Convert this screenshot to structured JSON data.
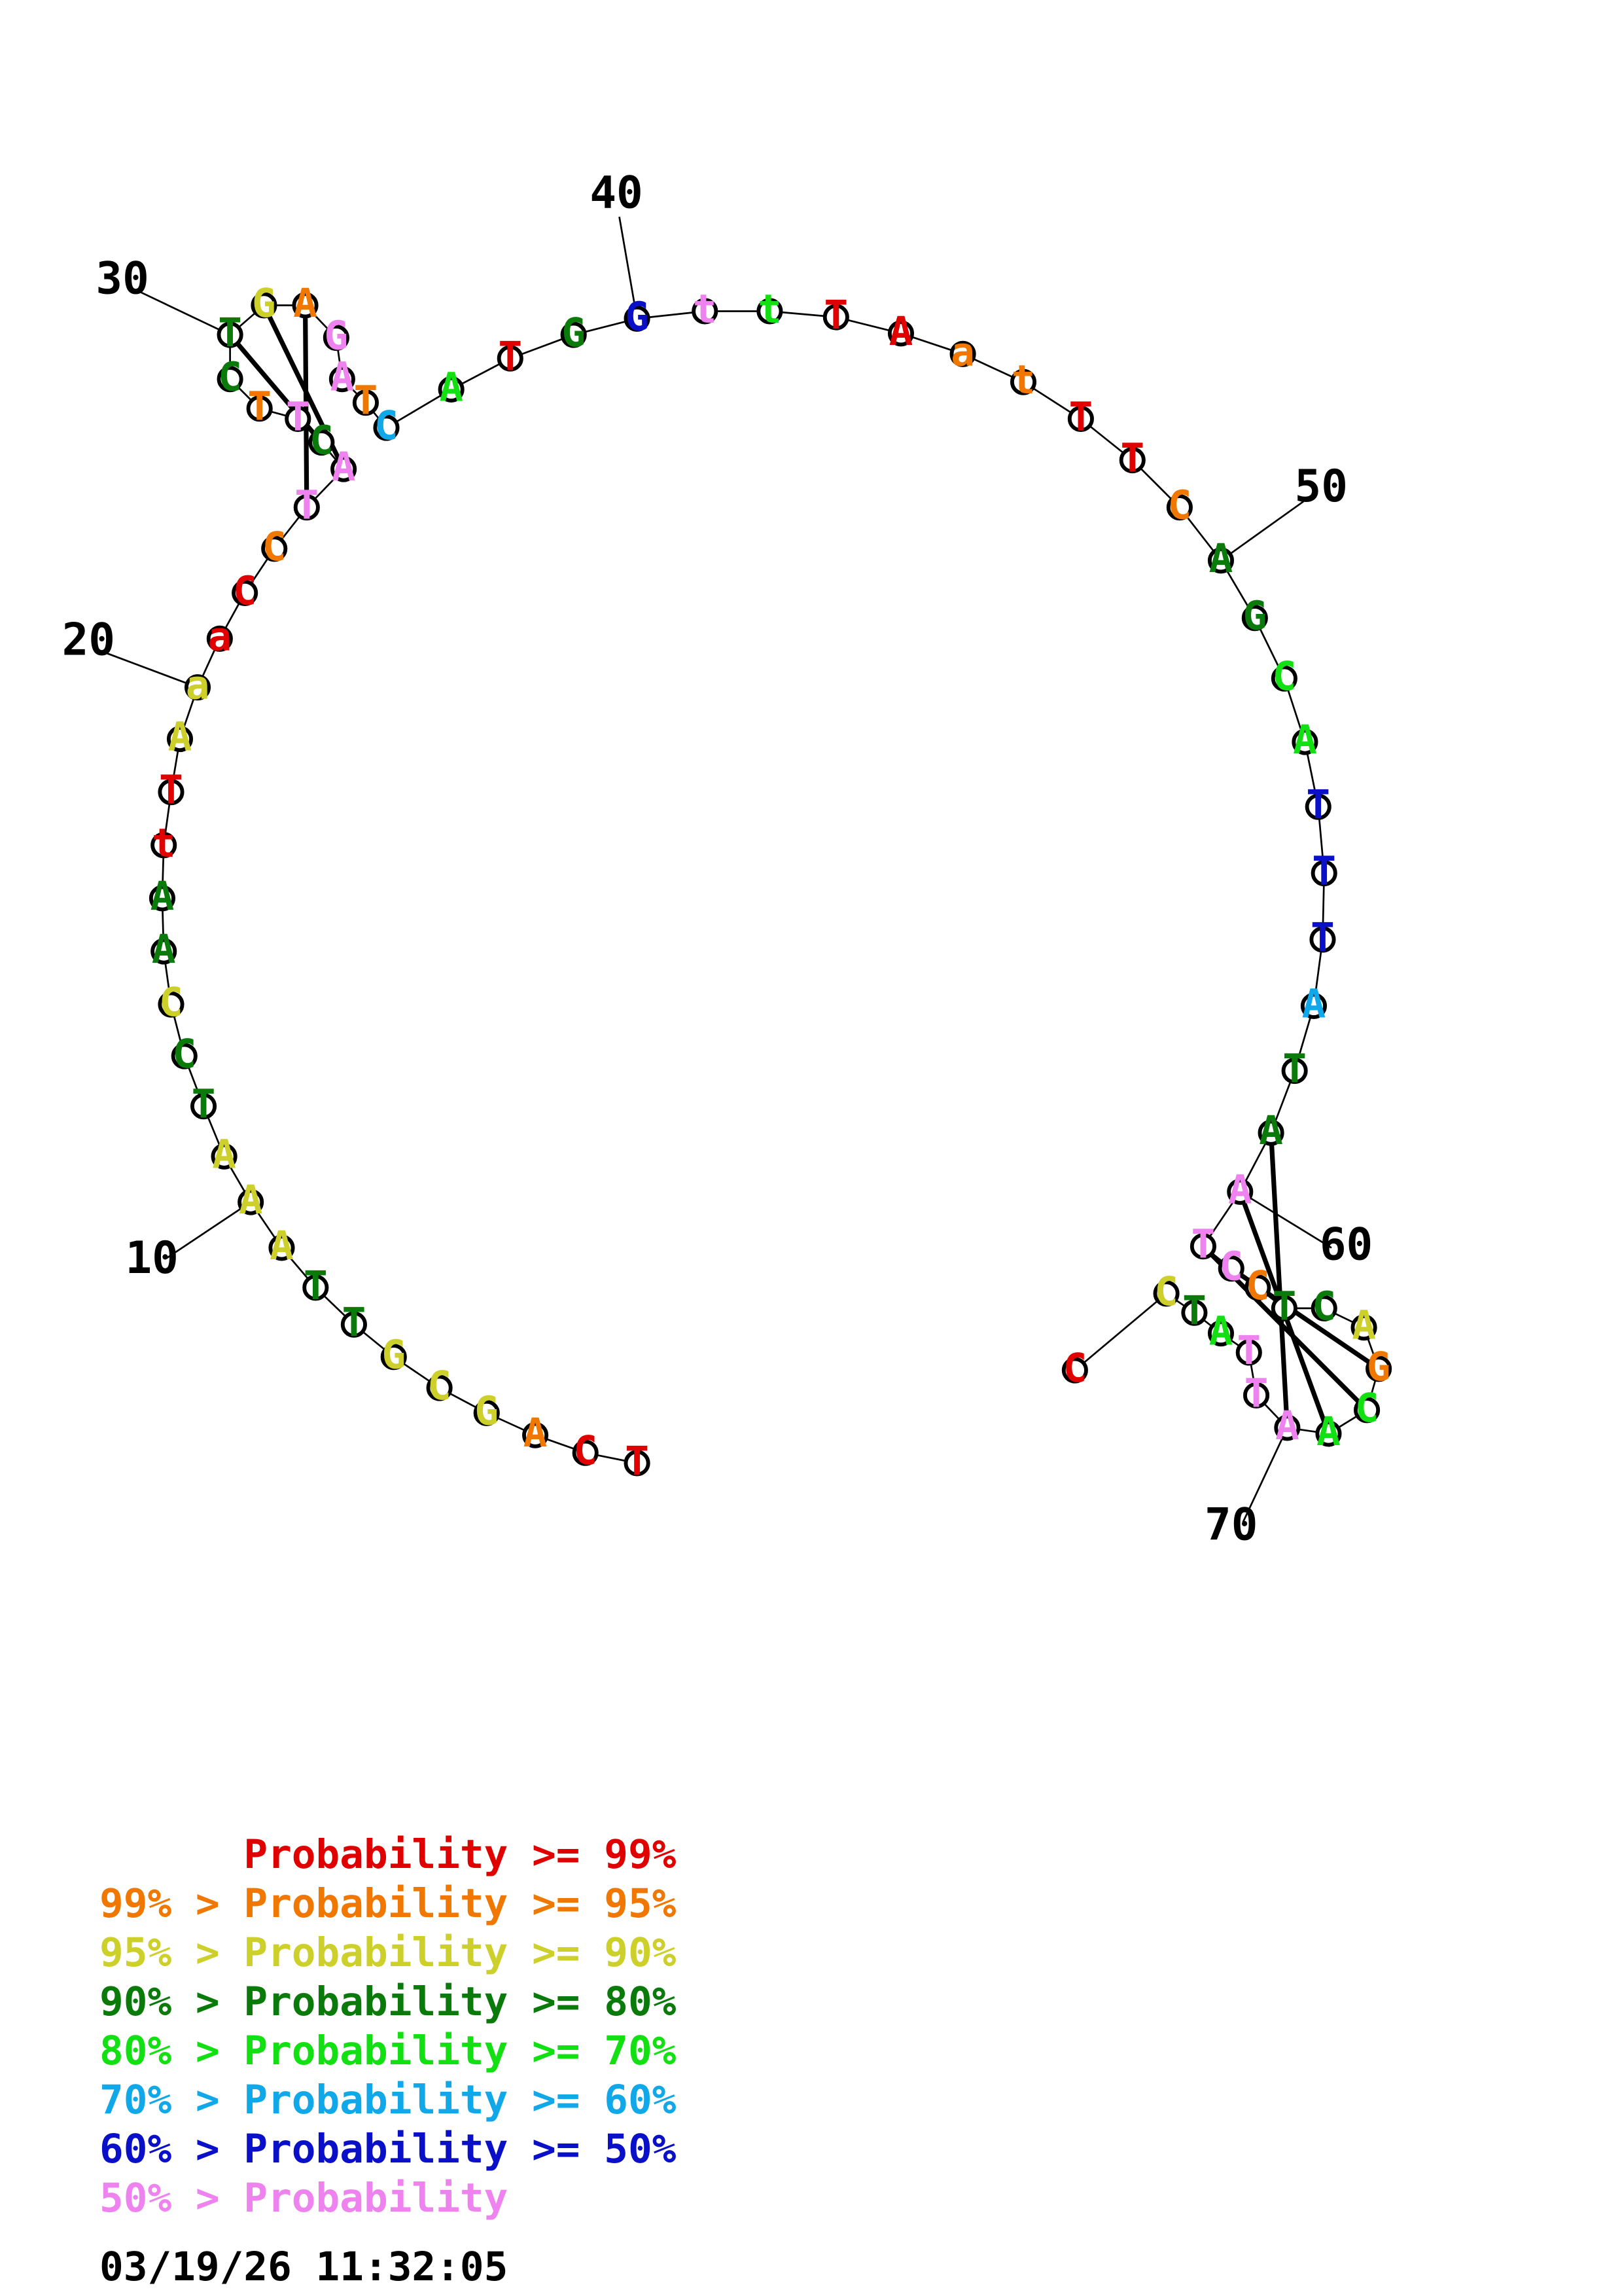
{
  "sequence": [
    "T",
    "C",
    "A",
    "G",
    "C",
    "G",
    "T",
    "T",
    "A",
    "A",
    "A",
    "T",
    "C",
    "C",
    "A",
    "A",
    "t",
    "T",
    "A",
    "a",
    "a",
    "C",
    "C",
    "T",
    "A",
    "C",
    "T",
    "T",
    "C",
    "T",
    "G",
    "A",
    "G",
    "A",
    "T",
    "C",
    "A",
    "T",
    "G",
    "G",
    "t",
    "t",
    "T",
    "A",
    "a",
    "t",
    "T",
    "T",
    "C",
    "A",
    "G",
    "C",
    "A",
    "T",
    "T",
    "T",
    "A",
    "T",
    "A",
    "A",
    "T",
    "C",
    "C",
    "T",
    "C",
    "A",
    "G",
    "C",
    "A",
    "A",
    "T",
    "T",
    "A",
    "T",
    "C",
    "C"
  ],
  "probability_class": [
    "red",
    "red",
    "orange",
    "yellow",
    "yellow",
    "yellow",
    "dkgreen",
    "dkgreen",
    "yellow",
    "yellow",
    "yellow",
    "dkgreen",
    "dkgreen",
    "yellow",
    "dkgreen",
    "dkgreen",
    "red",
    "red",
    "yellow",
    "yellow",
    "red",
    "red",
    "orange",
    "pink",
    "pink",
    "dkgreen",
    "pink",
    "orange",
    "dkgreen",
    "dkgreen",
    "yellow",
    "orange",
    "pink",
    "pink",
    "orange",
    "cyan",
    "green",
    "red",
    "dkgreen",
    "blue",
    "pink",
    "green",
    "red",
    "red",
    "orange",
    "orange",
    "red",
    "red",
    "orange",
    "dkgreen",
    "dkgreen",
    "green",
    "green",
    "blue",
    "blue",
    "blue",
    "cyan",
    "dkgreen",
    "dkgreen",
    "pink",
    "pink",
    "pink",
    "orange",
    "dkgreen",
    "dkgreen",
    "yellow",
    "orange",
    "green",
    "green",
    "pink",
    "pink",
    "pink",
    "green",
    "dkgreen",
    "yellow",
    "red"
  ],
  "base_pairs": [
    [
      24,
      32
    ],
    [
      25,
      31
    ],
    [
      26,
      30
    ],
    [
      59,
      70
    ],
    [
      60,
      69
    ],
    [
      61,
      68
    ],
    [
      62,
      67
    ]
  ],
  "position_labels": [
    {
      "nt": 10,
      "text": "10"
    },
    {
      "nt": 20,
      "text": "20"
    },
    {
      "nt": 30,
      "text": "30"
    },
    {
      "nt": 40,
      "text": "40"
    },
    {
      "nt": 50,
      "text": "50"
    },
    {
      "nt": 60,
      "text": "60"
    },
    {
      "nt": 70,
      "text": "70"
    }
  ],
  "colors": {
    "red": "#e00000",
    "orange": "#f07800",
    "yellow": "#cdd02a",
    "dkgreen": "#0a7a0a",
    "green": "#12e012",
    "cyan": "#10a8e8",
    "blue": "#0a10c8",
    "pink": "#ee82ee",
    "black": "#000000"
  },
  "legend": [
    {
      "lower": "",
      "label": "Probability",
      "upper": ">= 99%",
      "color": "red"
    },
    {
      "lower": "99% >",
      "label": "Probability",
      "upper": ">= 95%",
      "color": "orange"
    },
    {
      "lower": "95% >",
      "label": "Probability",
      "upper": ">= 90%",
      "color": "yellow"
    },
    {
      "lower": "90% >",
      "label": "Probability",
      "upper": ">= 80%",
      "color": "dkgreen"
    },
    {
      "lower": "80% >",
      "label": "Probability",
      "upper": ">= 70%",
      "color": "green"
    },
    {
      "lower": "70% >",
      "label": "Probability",
      "upper": ">= 60%",
      "color": "cyan"
    },
    {
      "lower": "60% >",
      "label": "Probability",
      "upper": ">= 50%",
      "color": "blue"
    },
    {
      "lower": "50% >",
      "label": "Probability",
      "upper": "",
      "color": "pink"
    }
  ],
  "timestamp": "03/19/26 11:32:05"
}
